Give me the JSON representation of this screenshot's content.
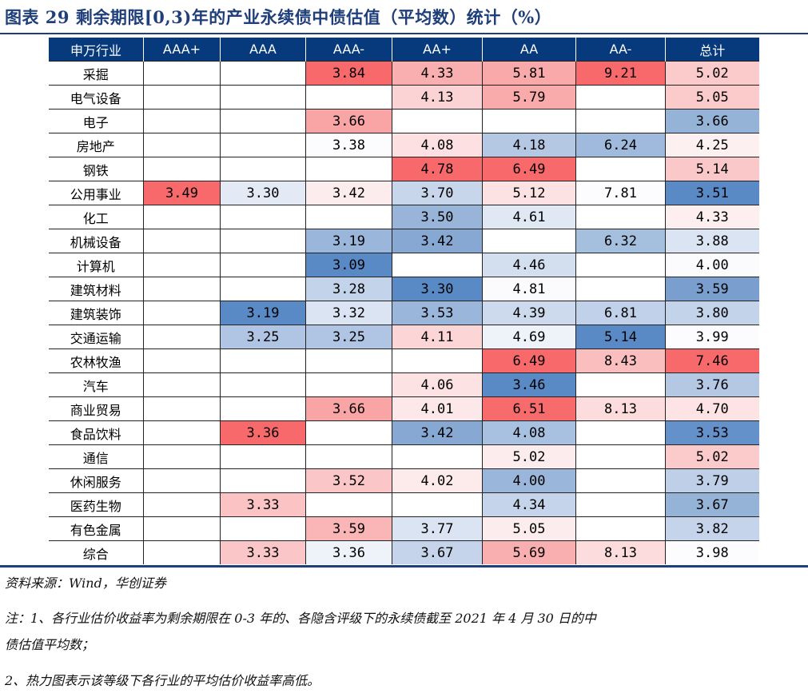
{
  "title": "图表 29  剩余期限[0,3)年的产业永续债中债估值（平均数）统计（%）",
  "table": {
    "headers": [
      "申万行业",
      "AAA+",
      "AAA",
      "AAA-",
      "AA+",
      "AA",
      "AA-",
      "总计"
    ],
    "rows": [
      {
        "label": "采掘",
        "values": [
          "",
          "",
          "3.84",
          "4.33",
          "5.81",
          "9.21",
          "5.02"
        ],
        "colors": [
          "",
          "",
          "#f8696b",
          "#f9aeaf",
          "#f9a9aa",
          "#f8696b",
          "#fbcacb"
        ]
      },
      {
        "label": "电气设备",
        "values": [
          "",
          "",
          "",
          "4.13",
          "5.79",
          "",
          "5.05"
        ],
        "colors": [
          "",
          "",
          "",
          "#fcd3d4",
          "#f9abac",
          "",
          "#fbcacb"
        ]
      },
      {
        "label": "电子",
        "values": [
          "",
          "",
          "3.66",
          "",
          "",
          "",
          "3.66"
        ],
        "colors": [
          "",
          "",
          "#f9a5a6",
          "",
          "",
          "",
          "#95b3d7"
        ]
      },
      {
        "label": "房地产",
        "values": [
          "",
          "",
          "3.38",
          "4.08",
          "4.18",
          "6.24",
          "4.25"
        ],
        "colors": [
          "",
          "",
          "#fcfcff",
          "#fde0e1",
          "#b4c7e3",
          "#9fbadc",
          "#fdf0f1"
        ]
      },
      {
        "label": "钢铁",
        "values": [
          "",
          "",
          "",
          "4.78",
          "6.49",
          "",
          "5.14"
        ],
        "colors": [
          "",
          "",
          "",
          "#f8696b",
          "#f8696b",
          "",
          "#fbc8c9"
        ]
      },
      {
        "label": "公用事业",
        "values": [
          "3.49",
          "3.30",
          "3.42",
          "3.70",
          "5.12",
          "7.81",
          "3.51"
        ],
        "colors": [
          "#f8696b",
          "#e3eaf5",
          "#fdeced",
          "#c8d6eb",
          "#fde2e3",
          "#fcfcff",
          "#5a8ac6"
        ]
      },
      {
        "label": "化工",
        "values": [
          "",
          "",
          "",
          "3.50",
          "4.61",
          "",
          "4.33"
        ],
        "colors": [
          "",
          "",
          "",
          "#98b5d9",
          "#e0e8f4",
          "",
          "#fdeeef"
        ]
      },
      {
        "label": "机械设备",
        "values": [
          "",
          "",
          "3.19",
          "3.42",
          "",
          "6.32",
          "3.88"
        ],
        "colors": [
          "",
          "",
          "#9ab6da",
          "#86a8d3",
          "",
          "#a5bfdf",
          "#dbe4f2"
        ]
      },
      {
        "label": "计算机",
        "values": [
          "",
          "",
          "3.09",
          "",
          "4.46",
          "",
          "4.00"
        ],
        "colors": [
          "",
          "",
          "#5a8ac6",
          "",
          "#d3dfef",
          "",
          "#fbfbfe"
        ]
      },
      {
        "label": "建筑材料",
        "values": [
          "",
          "",
          "3.28",
          "3.30",
          "4.81",
          "",
          "3.59"
        ],
        "colors": [
          "",
          "",
          "#c3d3ea",
          "#5a8ac6",
          "#fbfbfe",
          "",
          "#7a9fcf"
        ]
      },
      {
        "label": "建筑装饰",
        "values": [
          "",
          "3.19",
          "3.32",
          "3.53",
          "4.39",
          "6.81",
          "3.80"
        ],
        "colors": [
          "",
          "#5a8ac6",
          "#dbe4f2",
          "#9ab6da",
          "#cdd9ed",
          "#c1d1e9",
          "#c3d3ea"
        ]
      },
      {
        "label": "交通运输",
        "values": [
          "",
          "3.25",
          "3.25",
          "4.11",
          "4.69",
          "5.14",
          "3.99"
        ],
        "colors": [
          "",
          "#b0c4e3",
          "#b0c4e3",
          "#fcd5d6",
          "#eef2f9",
          "#5a8ac6",
          "#fcfcff"
        ]
      },
      {
        "label": "农林牧渔",
        "values": [
          "",
          "",
          "",
          "",
          "6.49",
          "8.43",
          "7.46"
        ],
        "colors": [
          "",
          "",
          "",
          "",
          "#f8696b",
          "#fbbebf",
          "#f8696b"
        ]
      },
      {
        "label": "汽车",
        "values": [
          "",
          "",
          "",
          "4.06",
          "3.46",
          "",
          "3.76"
        ],
        "colors": [
          "",
          "",
          "",
          "#fde2e3",
          "#5a8ac6",
          "",
          "#b4c8e4"
        ]
      },
      {
        "label": "商业贸易",
        "values": [
          "",
          "",
          "3.66",
          "4.01",
          "6.51",
          "8.13",
          "4.70"
        ],
        "colors": [
          "",
          "",
          "#f9a5a6",
          "#fde8e9",
          "#f86b6d",
          "#fcdcdd",
          "#fde3e4"
        ]
      },
      {
        "label": "食品饮料",
        "values": [
          "",
          "3.36",
          "",
          "3.42",
          "4.08",
          "",
          "3.53"
        ],
        "colors": [
          "",
          "#f8696b",
          "",
          "#86a8d3",
          "#a9c1e0",
          "",
          "#6591ca"
        ]
      },
      {
        "label": "通信",
        "values": [
          "",
          "",
          "",
          "",
          "5.02",
          "",
          "5.02"
        ],
        "colors": [
          "",
          "",
          "",
          "",
          "#fdeced",
          "",
          "#fbcacb"
        ]
      },
      {
        "label": "休闲服务",
        "values": [
          "",
          "",
          "3.52",
          "4.02",
          "4.00",
          "",
          "3.79"
        ],
        "colors": [
          "",
          "",
          "#fbc6c7",
          "#fdeaeb",
          "#9ab6da",
          "",
          "#bfcfe8"
        ]
      },
      {
        "label": "医药生物",
        "values": [
          "",
          "3.33",
          "",
          "",
          "4.34",
          "",
          "3.67"
        ],
        "colors": [
          "",
          "#fbc3c4",
          "",
          "",
          "#c5d4ea",
          "",
          "#95b3d7"
        ]
      },
      {
        "label": "有色金属",
        "values": [
          "",
          "",
          "3.59",
          "3.77",
          "5.05",
          "",
          "3.82"
        ],
        "colors": [
          "",
          "",
          "#fab6b7",
          "#dbe4f2",
          "#fdeced",
          "",
          "#c5d4ea"
        ]
      },
      {
        "label": "综合",
        "values": [
          "",
          "3.33",
          "3.36",
          "3.67",
          "5.69",
          "8.13",
          "3.98"
        ],
        "colors": [
          "",
          "#fbc6c7",
          "#eef2f9",
          "#c5d4ea",
          "#f9aeaf",
          "#fcdcdd",
          "#fcfcff"
        ]
      }
    ]
  },
  "notes": {
    "source": "资料来源：Wind，华创证券",
    "note1a": "注：1、各行业估价收益率为剩余期限在 0-3 年的、各隐含评级下的永续债截至 2021 年 4 月 30 日的中",
    "note1b": "债估值平均数；",
    "note2": "2、热力图表示该等级下各行业的平均估价收益率高低。"
  }
}
